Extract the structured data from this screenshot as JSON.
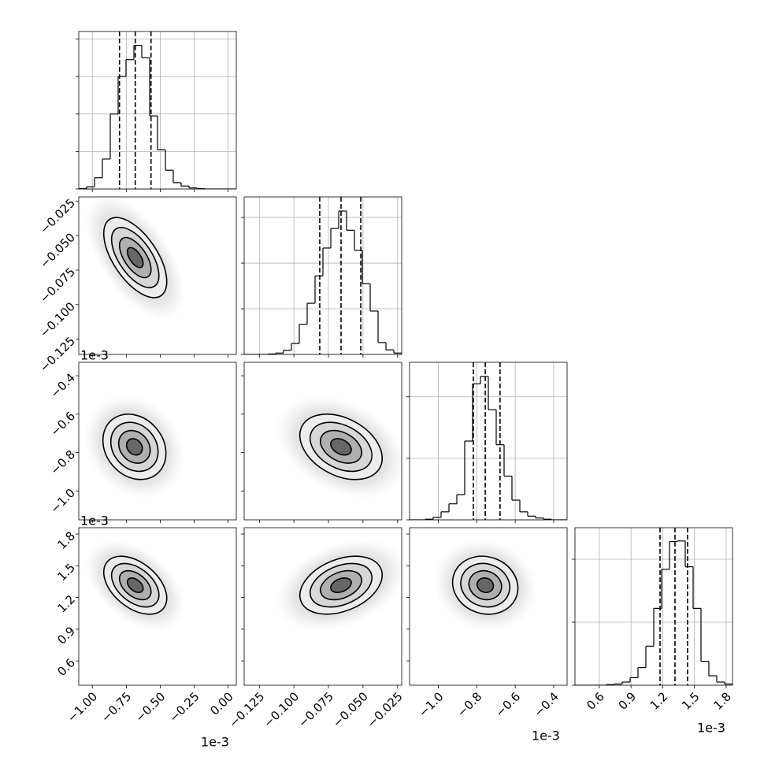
{
  "chart_data": {
    "type": "corner",
    "color": "#000000",
    "levels": [
      0.5,
      1,
      1.5,
      2
    ],
    "hist_grid": true,
    "offset_texts": [
      "1e-3",
      "1e-3",
      "1e-3",
      "1e-3",
      "1e-3"
    ],
    "params": [
      {
        "lim": [
          -1.1,
          0.06
        ],
        "ticks": [
          {
            "value": -1,
            "label": "−1.00"
          },
          {
            "value": -0.75,
            "label": "−0.75"
          },
          {
            "value": -0.5,
            "label": "−0.50"
          },
          {
            "value": -0.25,
            "label": "−0.25"
          },
          {
            "value": 0,
            "label": "0.00"
          }
        ],
        "quantiles": [
          -0.8,
          -0.684,
          -0.568
        ],
        "hist": {
          "bins": [
            -1.1,
            -1.042,
            -0.984,
            -0.926,
            -0.868,
            -0.81,
            -0.752,
            -0.694,
            -0.636,
            -0.578,
            -0.52,
            -0.462,
            -0.404,
            -0.346,
            -0.288,
            -0.23,
            -0.172,
            -0.114,
            -0.056,
            0.002,
            0.06
          ],
          "counts": [
            1,
            6,
            30,
            80,
            200,
            300,
            345,
            383,
            350,
            195,
            105,
            50,
            17,
            8,
            3,
            1,
            0,
            0,
            0,
            0
          ],
          "ylim": [
            0,
            420
          ],
          "yticks": [
            0,
            100,
            200,
            300,
            400
          ]
        }
      },
      {
        "lim": [
          -0.136,
          -0.022
        ],
        "ticks": [
          {
            "value": -0.125,
            "label": "−0.125"
          },
          {
            "value": -0.1,
            "label": "−0.100"
          },
          {
            "value": -0.075,
            "label": "−0.075"
          },
          {
            "value": -0.05,
            "label": "−0.050"
          },
          {
            "value": -0.025,
            "label": "−0.025"
          }
        ],
        "quantiles": [
          -0.0813,
          -0.0659,
          -0.0516
        ],
        "hist": {
          "bins": [
            -0.136,
            -0.1303,
            -0.1246,
            -0.1189,
            -0.1132,
            -0.1075,
            -0.1018,
            -0.0961,
            -0.0904,
            -0.0847,
            -0.079,
            -0.0733,
            -0.0676,
            -0.0619,
            -0.0562,
            -0.0505,
            -0.0448,
            -0.0391,
            -0.0334,
            -0.0277,
            -0.022
          ],
          "counts": [
            0,
            0,
            0,
            1,
            3,
            9,
            24,
            66,
            112,
            172,
            233,
            276,
            314,
            272,
            228,
            155,
            95,
            26,
            10,
            3
          ],
          "ylim": [
            0,
            345
          ],
          "yticks": [
            0,
            100,
            200,
            300
          ]
        }
      },
      {
        "lim": [
          -1.15,
          -0.33
        ],
        "ticks": [
          {
            "value": -1,
            "label": "−1.0"
          },
          {
            "value": -0.8,
            "label": "−0.8"
          },
          {
            "value": -0.6,
            "label": "−0.6"
          },
          {
            "value": -0.4,
            "label": "−0.4"
          }
        ],
        "quantiles": [
          -0.818,
          -0.756,
          -0.679
        ],
        "hist": {
          "bins": [
            -1.15,
            -1.109,
            -1.068,
            -1.027,
            -0.986,
            -0.945,
            -0.904,
            -0.863,
            -0.822,
            -0.781,
            -0.74,
            -0.699,
            -0.658,
            -0.617,
            -0.576,
            -0.535,
            -0.494,
            -0.453,
            -0.412,
            -0.371,
            -0.33
          ],
          "counts": [
            0,
            0,
            1,
            4,
            13,
            26,
            41,
            128,
            221,
            233,
            179,
            122,
            71,
            32,
            13,
            6,
            3,
            1,
            0,
            0
          ],
          "ylim": [
            0,
            256
          ],
          "yticks": [
            0,
            100,
            200
          ]
        }
      },
      {
        "lim": [
          0.37,
          1.86
        ],
        "ticks": [
          0.6,
          0.9,
          1.2,
          1.5,
          1.8
        ],
        "quantiles": [
          1.175,
          1.316,
          1.435
        ],
        "hist": {
          "bins": [
            0.37,
            0.4445,
            0.519,
            0.5935,
            0.668,
            0.7425,
            0.817,
            0.8915,
            0.966,
            1.0405,
            1.115,
            1.1895,
            1.264,
            1.3385,
            1.413,
            1.4875,
            1.562,
            1.6365,
            1.711,
            1.7855,
            1.86
          ],
          "counts": [
            0,
            0,
            0,
            0,
            1,
            2,
            5,
            12,
            28,
            62,
            122,
            184,
            228,
            229,
            188,
            122,
            38,
            15,
            5,
            2
          ],
          "ylim": [
            0,
            250
          ],
          "yticks": [
            0,
            100,
            200
          ]
        }
      }
    ],
    "pairs": [
      {
        "x": 0,
        "y": 1,
        "center": [
          -0.684,
          -0.0659
        ],
        "sigma": [
          0.116,
          0.0145
        ],
        "corr": -0.6
      },
      {
        "x": 0,
        "y": 2,
        "center": [
          -0.69,
          -0.77
        ],
        "sigma": [
          0.116,
          0.085
        ],
        "corr": -0.2
      },
      {
        "x": 1,
        "y": 2,
        "center": [
          -0.0659,
          -0.77
        ],
        "sigma": [
          0.0149,
          0.085
        ],
        "corr": -0.35
      },
      {
        "x": 0,
        "y": 3,
        "center": [
          -0.684,
          1.316
        ],
        "sigma": [
          0.116,
          0.137
        ],
        "corr": -0.45
      },
      {
        "x": 1,
        "y": 3,
        "center": [
          -0.0659,
          1.316
        ],
        "sigma": [
          0.0149,
          0.137
        ],
        "corr": 0.35
      },
      {
        "x": 2,
        "y": 3,
        "center": [
          -0.756,
          1.316
        ],
        "sigma": [
          0.085,
          0.137
        ],
        "corr": -0.1
      }
    ]
  }
}
